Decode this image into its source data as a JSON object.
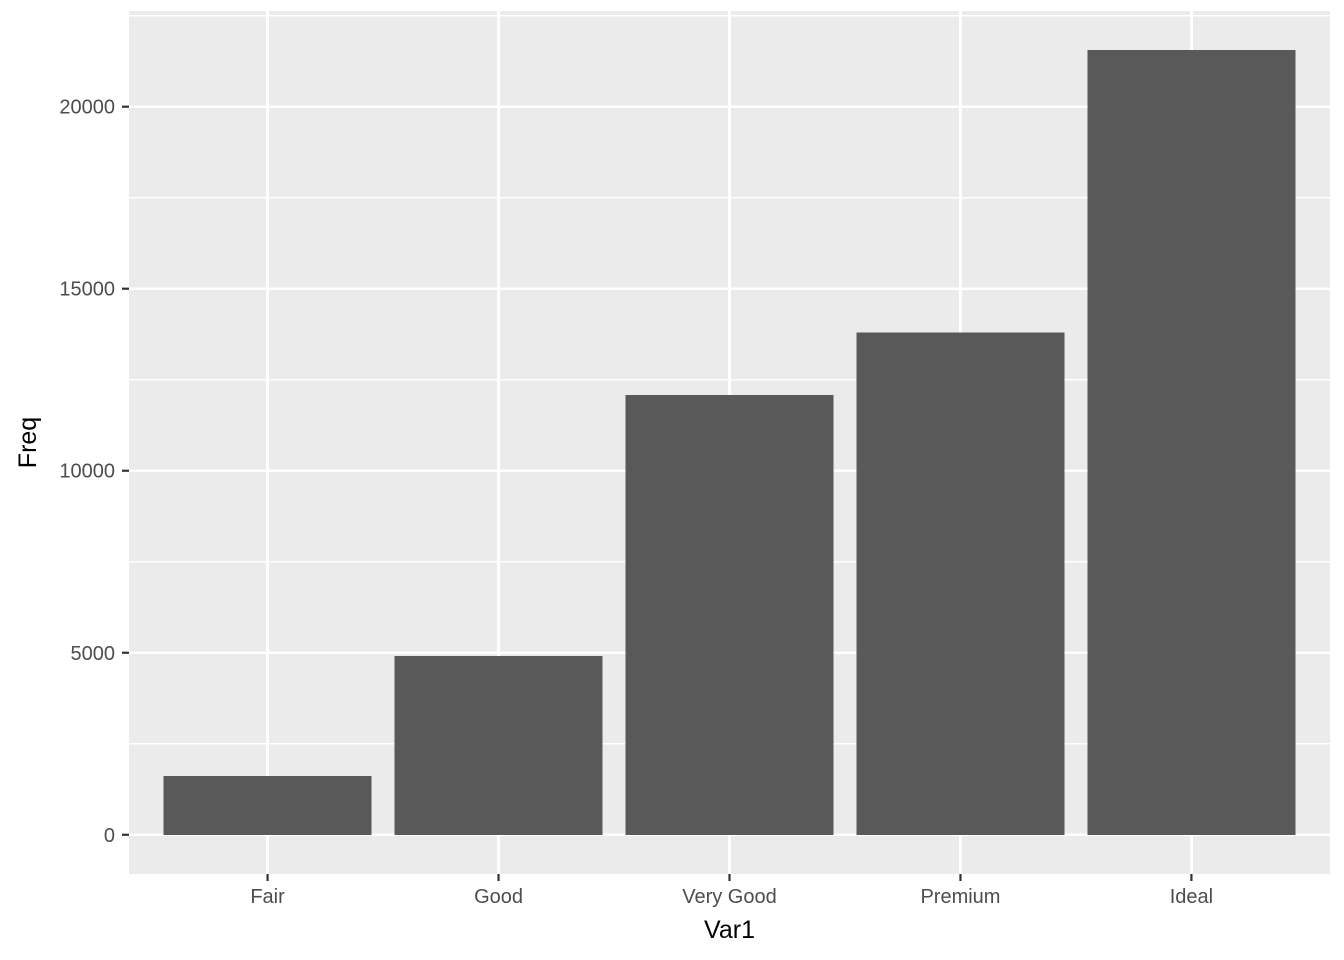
{
  "chart_data": {
    "type": "bar",
    "title": "",
    "xlabel": "Var1",
    "ylabel": "Freq",
    "categories": [
      "Fair",
      "Good",
      "Very Good",
      "Premium",
      "Ideal"
    ],
    "values": [
      1610,
      4906,
      12082,
      13791,
      21551
    ],
    "yticks": [
      0,
      5000,
      10000,
      15000,
      20000
    ],
    "ytick_labels": [
      "0",
      "5000",
      "10000",
      "15000",
      "20000"
    ],
    "yticks_minor": [
      2500,
      7500,
      12500,
      17500,
      22500
    ],
    "ylim": [
      0,
      21551
    ],
    "y_expansion": 0.05,
    "x_expansion_units": 0.6,
    "bar_width_fraction": 0.9,
    "grid": "on",
    "legend": "none",
    "style": {
      "figure_background": "#FFFFFF",
      "panel_background": "#EBEBEB",
      "grid_color": "#FFFFFF",
      "bar_fill": "#595959",
      "axis_text_color": "#4D4D4D",
      "axis_title_color": "#000000",
      "tick_mark_color": "#333333"
    }
  }
}
